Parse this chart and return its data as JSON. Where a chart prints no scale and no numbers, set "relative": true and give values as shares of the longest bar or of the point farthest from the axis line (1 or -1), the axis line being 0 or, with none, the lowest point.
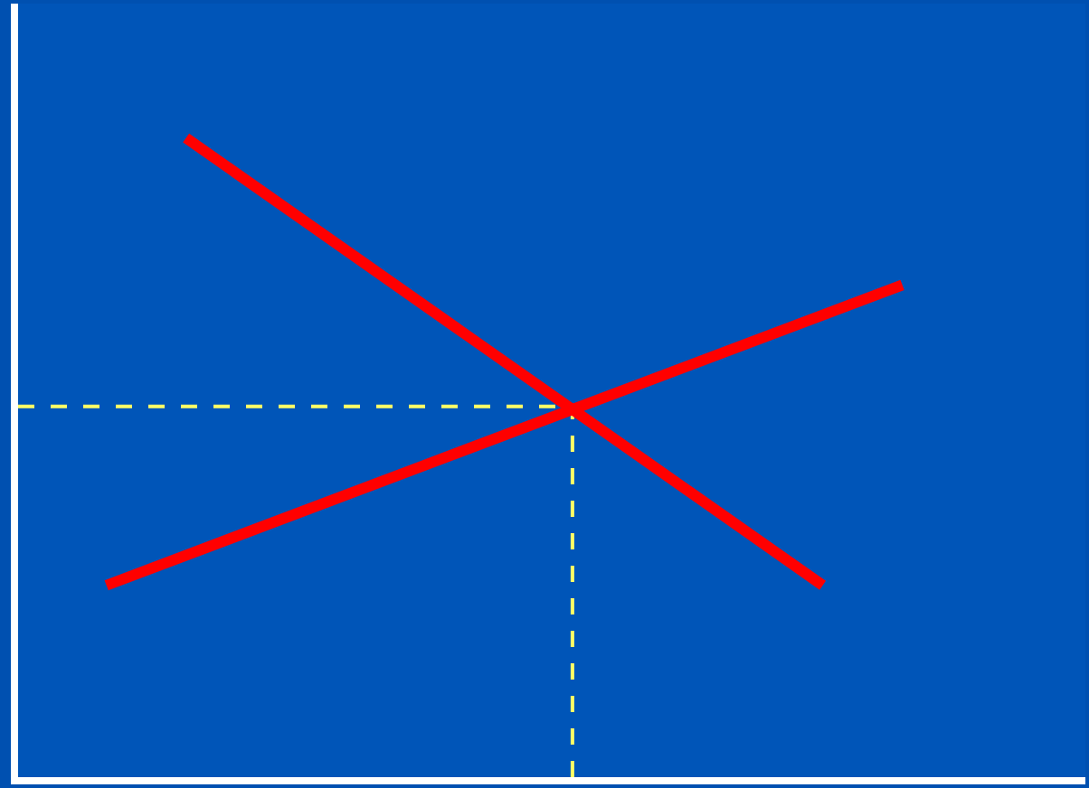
{
  "chart_data": {
    "type": "line",
    "relative": true,
    "grid": false,
    "marker": "none",
    "line_style": "solid",
    "categories": [
      null,
      null,
      null,
      null,
      null,
      null,
      null,
      null,
      null,
      null,
      null
    ],
    "series": [
      {
        "color": "#ff0000",
        "values": [
          null,
          1,
          null,
          null,
          null,
          null,
          null,
          null,
          null,
          0.3,
          null
        ]
      },
      {
        "color": "#ff0000",
        "values": [
          0.3,
          null,
          null,
          null,
          null,
          null,
          null,
          null,
          null,
          null,
          0.77
        ]
      }
    ],
    "ref_lines": [
      {
        "axis": "y",
        "value": 0.58,
        "color": "#ffff66",
        "line_style": "dashed"
      }
    ]
  }
}
